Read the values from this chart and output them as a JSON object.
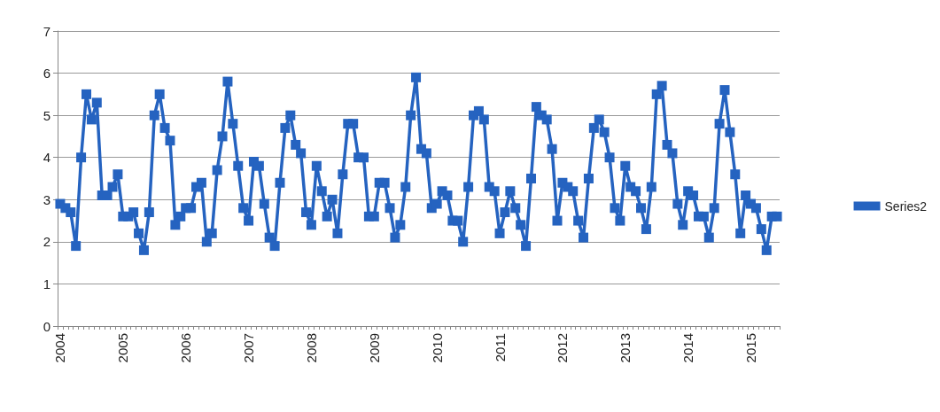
{
  "chart_data": {
    "type": "line",
    "categories": [
      "2004",
      null,
      null,
      null,
      null,
      null,
      null,
      null,
      null,
      null,
      null,
      null,
      "2005",
      null,
      null,
      null,
      null,
      null,
      null,
      null,
      null,
      null,
      null,
      null,
      "2006",
      null,
      null,
      null,
      null,
      null,
      null,
      null,
      null,
      null,
      null,
      null,
      "2007",
      null,
      null,
      null,
      null,
      null,
      null,
      null,
      null,
      null,
      null,
      null,
      "2008",
      null,
      null,
      null,
      null,
      null,
      null,
      null,
      null,
      null,
      null,
      null,
      "2009",
      null,
      null,
      null,
      null,
      null,
      null,
      null,
      null,
      null,
      null,
      null,
      "2010",
      null,
      null,
      null,
      null,
      null,
      null,
      null,
      null,
      null,
      null,
      null,
      "2011",
      null,
      null,
      null,
      null,
      null,
      null,
      null,
      null,
      null,
      null,
      null,
      "2012",
      null,
      null,
      null,
      null,
      null,
      null,
      null,
      null,
      null,
      null,
      null,
      "2013",
      null,
      null,
      null,
      null,
      null,
      null,
      null,
      null,
      null,
      null,
      null,
      "2014",
      null,
      null,
      null,
      null,
      null,
      null,
      null,
      null,
      null,
      null,
      null,
      "2015",
      null,
      null,
      null,
      null,
      null
    ],
    "series": [
      {
        "name": "Series2",
        "color": "#2563c0",
        "values": [
          2.9,
          2.8,
          2.7,
          1.9,
          4.0,
          5.5,
          4.9,
          5.3,
          3.1,
          3.1,
          3.3,
          3.6,
          2.6,
          2.6,
          2.7,
          2.2,
          1.8,
          2.7,
          5.0,
          5.5,
          4.7,
          4.4,
          2.4,
          2.6,
          2.8,
          2.8,
          3.3,
          3.4,
          2.0,
          2.2,
          3.7,
          4.5,
          5.8,
          4.8,
          3.8,
          2.8,
          2.5,
          3.9,
          3.8,
          2.9,
          2.1,
          1.9,
          3.4,
          4.7,
          5.0,
          4.3,
          4.1,
          2.7,
          2.4,
          3.8,
          3.2,
          2.6,
          3.0,
          2.2,
          3.6,
          4.8,
          4.8,
          4.0,
          4.0,
          2.6,
          2.6,
          3.4,
          3.4,
          2.8,
          2.1,
          2.4,
          3.3,
          5.0,
          5.9,
          4.2,
          4.1,
          2.8,
          2.9,
          3.2,
          3.1,
          2.5,
          2.5,
          2.0,
          3.3,
          5.0,
          5.1,
          4.9,
          3.3,
          3.2,
          2.2,
          2.7,
          3.2,
          2.8,
          2.4,
          1.9,
          3.5,
          5.2,
          5.0,
          4.9,
          4.2,
          2.5,
          3.4,
          3.3,
          3.2,
          2.5,
          2.1,
          3.5,
          4.7,
          4.9,
          4.6,
          4.0,
          2.8,
          2.5,
          3.8,
          3.3,
          3.2,
          2.8,
          2.3,
          3.3,
          5.5,
          5.7,
          4.3,
          4.1,
          2.9,
          2.4,
          3.2,
          3.1,
          2.6,
          2.6,
          2.1,
          2.8,
          4.8,
          5.6,
          4.6,
          3.6,
          2.2,
          3.1,
          2.9,
          2.8,
          2.3,
          1.8,
          2.6,
          2.6
        ]
      }
    ],
    "ylim": [
      0,
      7
    ],
    "yticks": [
      0,
      1,
      2,
      3,
      4,
      5,
      6,
      7
    ],
    "grid": "y",
    "legend": "right",
    "marker": "square",
    "line_style": "solid"
  }
}
